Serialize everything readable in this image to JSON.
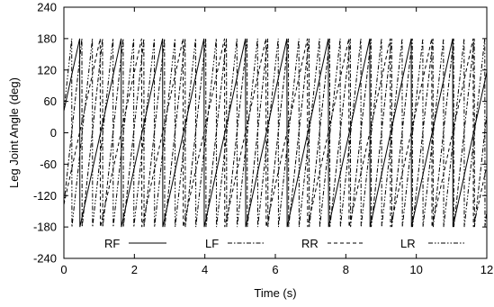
{
  "chart_data": {
    "type": "line",
    "xlabel": "Time (s)",
    "ylabel": "Leg Joint Angle (deg)",
    "xlim": [
      0,
      12
    ],
    "ylim": [
      -240,
      240
    ],
    "xticks": [
      0,
      2,
      4,
      6,
      8,
      10,
      12
    ],
    "yticks": [
      -240,
      -180,
      -120,
      -60,
      0,
      60,
      120,
      180,
      240
    ],
    "grid": false,
    "legend": "bottom, single row inside plot",
    "series": [
      {
        "name": "RF",
        "style": "solid",
        "period": 1.17,
        "x0": 0,
        "y0": 42
      },
      {
        "name": "LF",
        "style": "dashdot",
        "period": 0.58,
        "x0": 0,
        "y0": -137
      },
      {
        "name": "RR",
        "style": "dashed",
        "period": 1.17,
        "x0": 0,
        "y0": -137
      },
      {
        "name": "LR",
        "style": "dashdotdot",
        "period": 0.58,
        "x0": 0,
        "y0": 42
      }
    ],
    "wrap_range": [
      -180,
      180
    ]
  }
}
